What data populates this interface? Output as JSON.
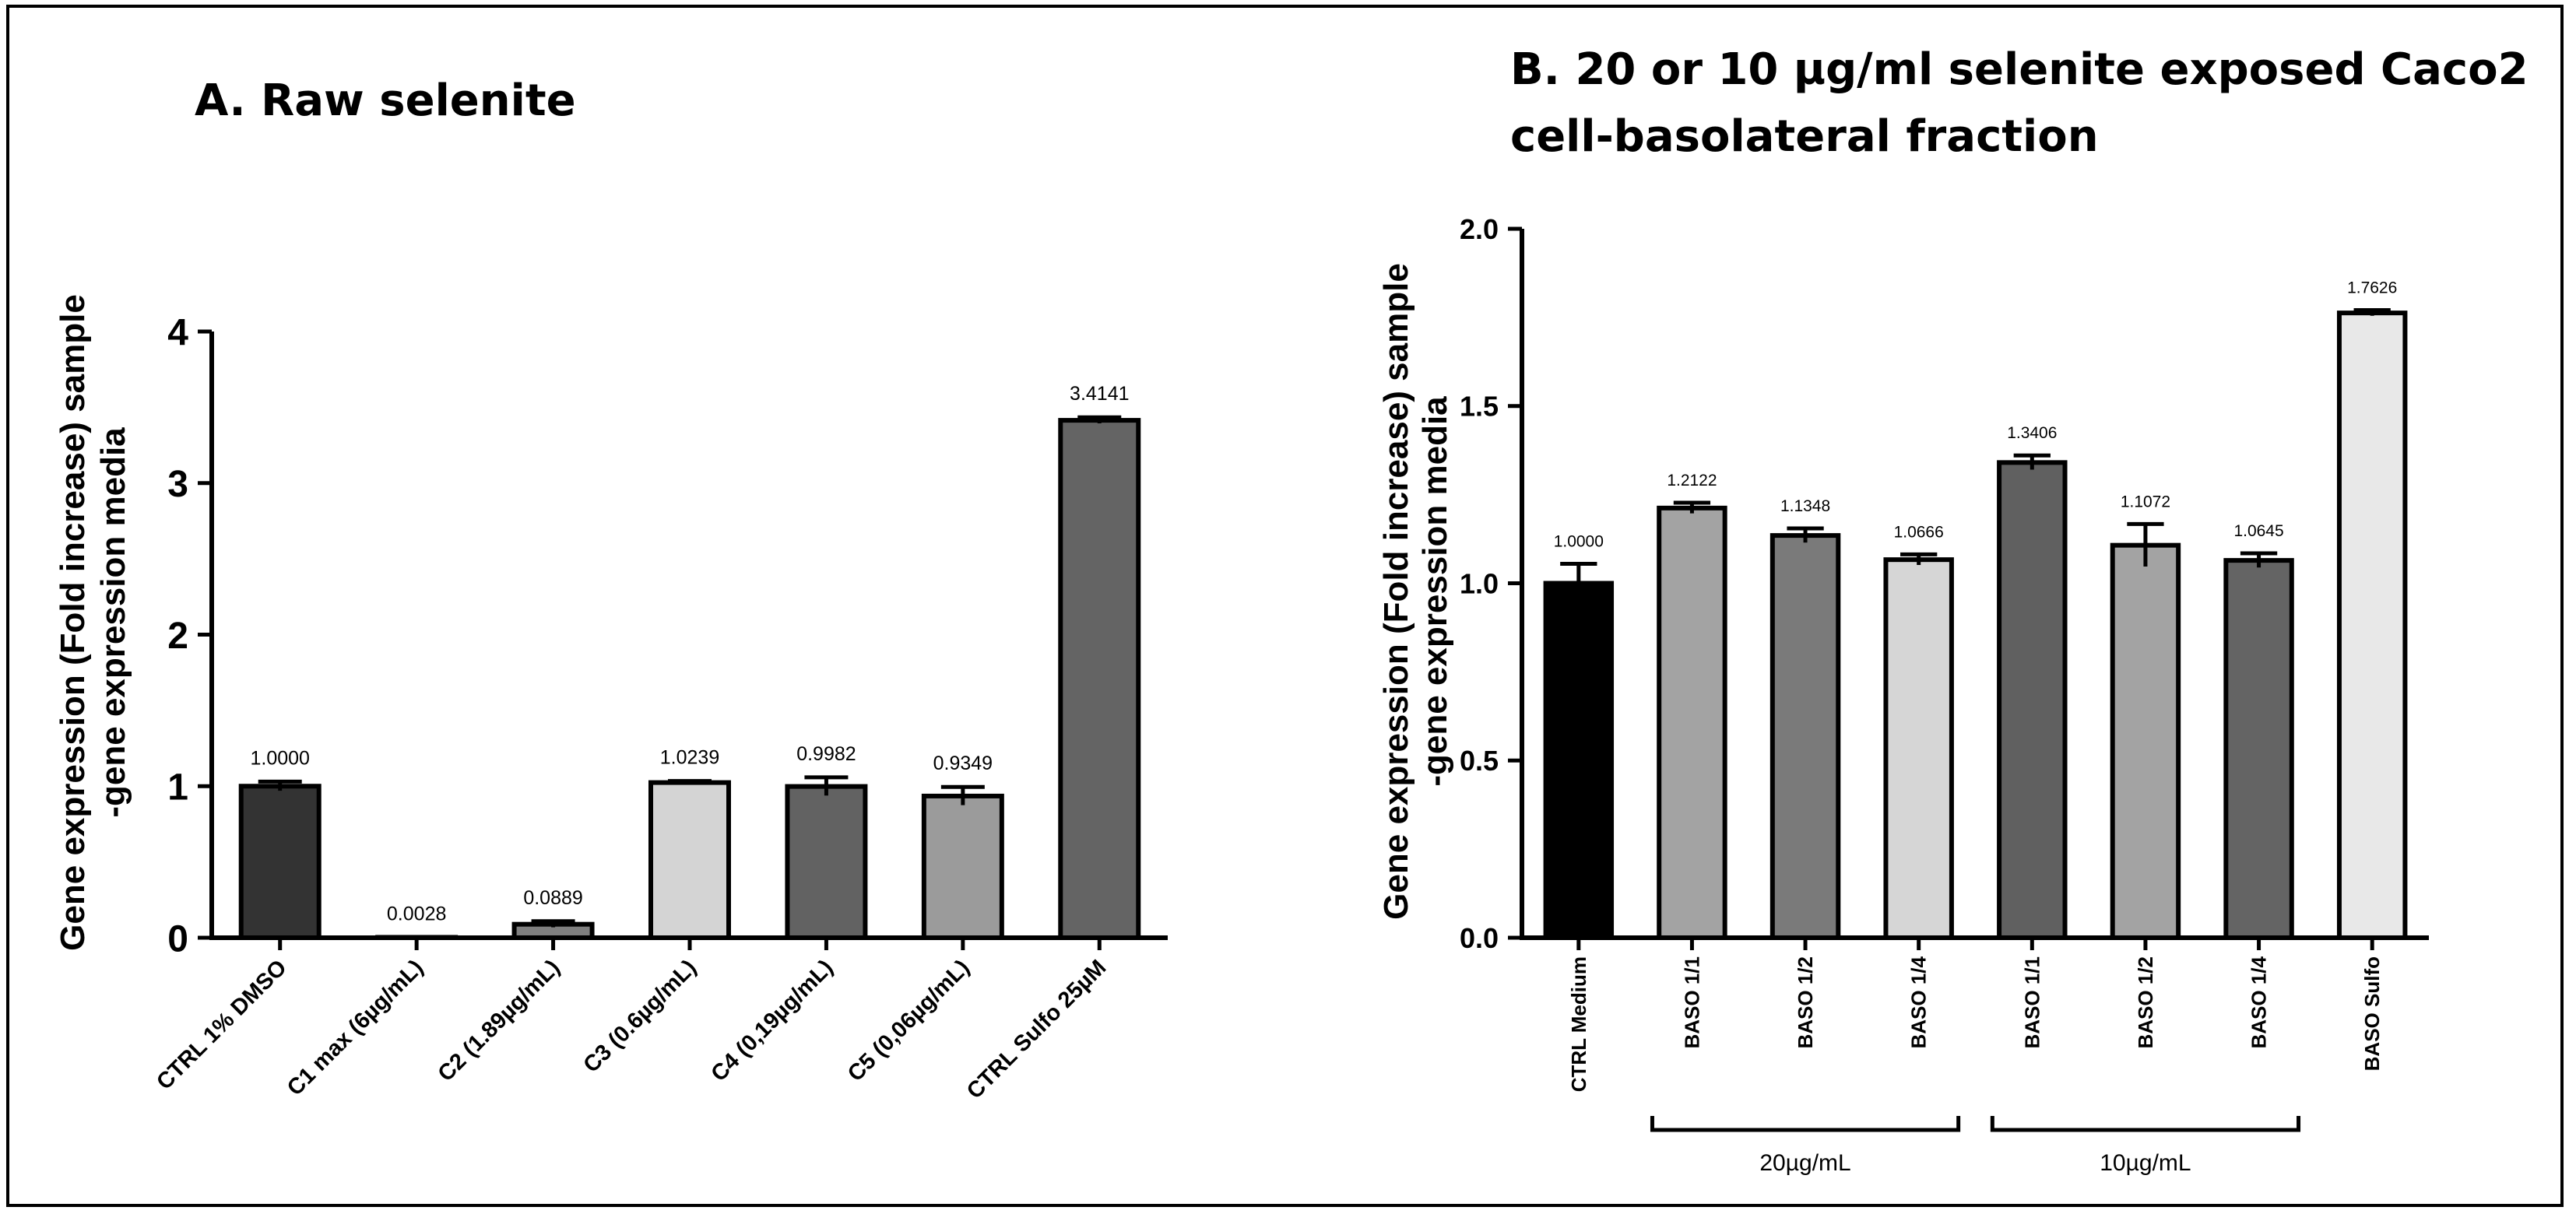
{
  "chart_data": [
    {
      "panel": "A",
      "type": "bar",
      "title": "A. Raw selenite",
      "ylabel_line1": "Gene expression (Fold increase) sample",
      "ylabel_line2": "-gene expression media",
      "ylim": [
        0,
        4
      ],
      "yticks": [
        "0",
        "1",
        "2",
        "3",
        "4"
      ],
      "ytick_values": [
        0,
        1,
        2,
        3,
        4
      ],
      "categories": [
        "CTRL 1% DMSO",
        "C1 max (6µg/mL)",
        "C2 (1.89µg/mL)",
        "C3 (0.6µg/mL)",
        "C4 (0,19µg/mL)",
        "C5 (0,06µg/mL)",
        "CTRL Sulfo 25µM"
      ],
      "values": [
        1.0,
        0.0028,
        0.0889,
        1.0239,
        0.9982,
        0.9349,
        3.4141
      ],
      "errors": [
        0.03,
        0.0,
        0.02,
        0.01,
        0.06,
        0.06,
        0.02
      ],
      "value_labels": [
        "1.0000",
        "0.0028",
        "0.0889",
        "1.0239",
        "0.9982",
        "0.9349",
        "3.4141"
      ],
      "colors": [
        "#333333",
        "#7f7f7f",
        "#7f7f7f",
        "#d4d4d4",
        "#626262",
        "#9b9b9b",
        "#646464"
      ],
      "grid": false,
      "legend": "none"
    },
    {
      "panel": "B",
      "type": "bar",
      "title_line1": "B. 20 or 10 µg/ml selenite exposed Caco2",
      "title_line2": "cell-basolateral fraction",
      "ylabel_line1": "Gene expression (Fold increase) sample",
      "ylabel_line2": "-gene expression media",
      "ylim": [
        0,
        2
      ],
      "yticks": [
        "0.0",
        "0.5",
        "1.0",
        "1.5",
        "2.0"
      ],
      "ytick_values": [
        0,
        0.5,
        1.0,
        1.5,
        2.0
      ],
      "categories": [
        "CTRL Medium",
        "BASO 1/1",
        "BASO 1/2",
        "BASO 1/4",
        "BASO 1/1",
        "BASO 1/2",
        "BASO 1/4",
        "BASO Sulfo"
      ],
      "values": [
        1.0,
        1.2122,
        1.1348,
        1.0666,
        1.3406,
        1.1072,
        1.0645,
        1.7626
      ],
      "errors": [
        0.055,
        0.015,
        0.02,
        0.015,
        0.02,
        0.06,
        0.02,
        0.008
      ],
      "value_labels": [
        "1.0000",
        "1.2122",
        "1.1348",
        "1.0666",
        "1.3406",
        "1.1072",
        "1.0645",
        "1.7626"
      ],
      "colors": [
        "#000000",
        "#a3a3a3",
        "#7a7a7a",
        "#d6d6d6",
        "#606060",
        "#a3a3a3",
        "#646464",
        "#e8e8e8"
      ],
      "groups": [
        {
          "label": "20µg/mL",
          "from": 1,
          "to": 3
        },
        {
          "label": "10µg/mL",
          "from": 4,
          "to": 6
        }
      ],
      "grid": false,
      "legend": "none"
    }
  ]
}
